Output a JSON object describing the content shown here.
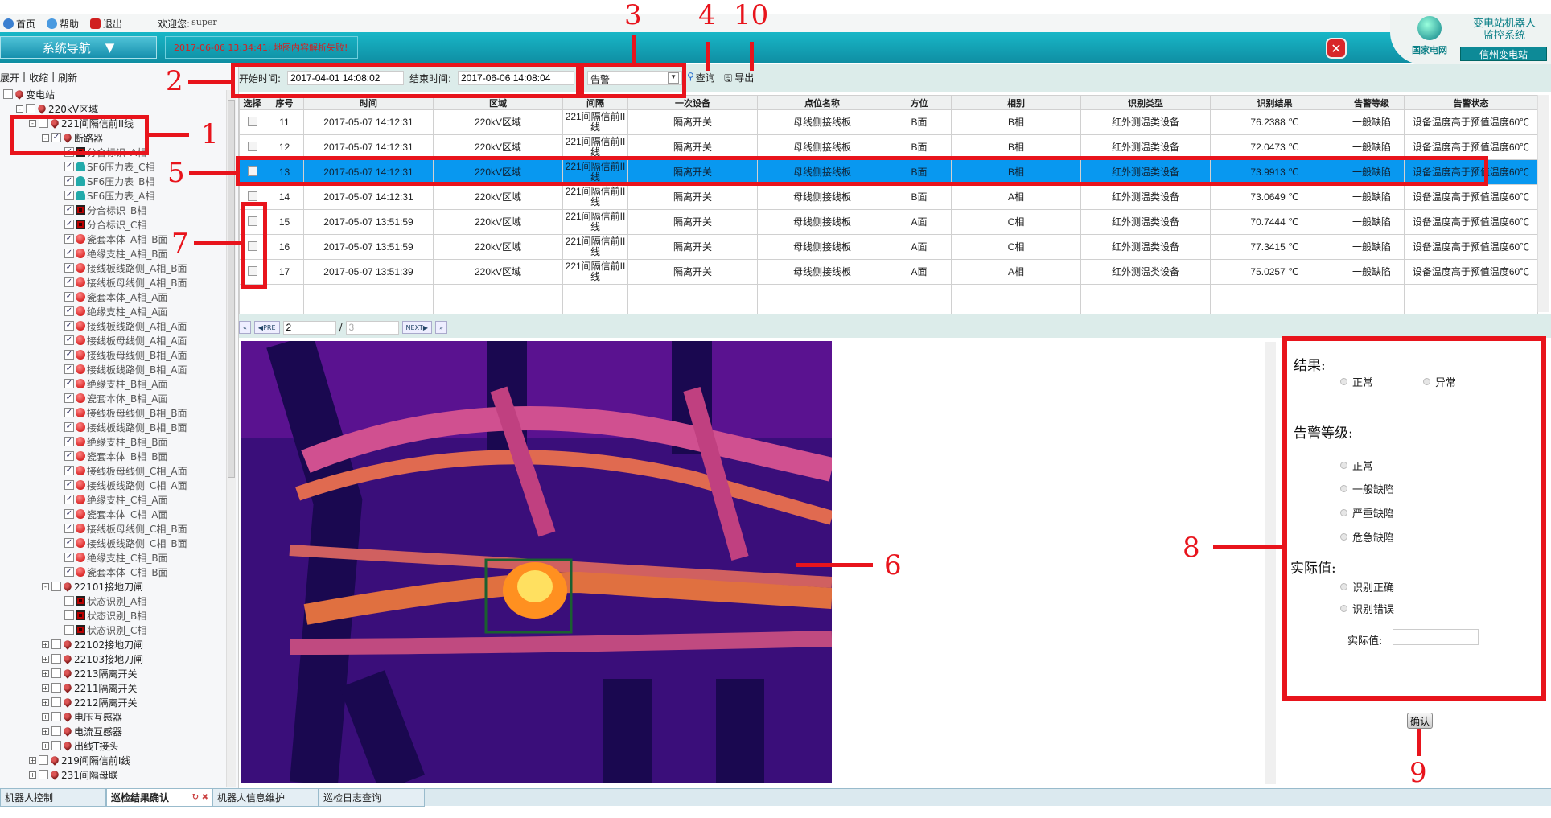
{
  "menubar": {
    "home": "首页",
    "help": "帮助",
    "logout": "退出",
    "welcome_label": "欢迎您:",
    "user": "super"
  },
  "header": {
    "nav_label": "系统导航",
    "message": "2017-06-06 13:34:41: 地图内容解析失败!",
    "org": "国家电网",
    "system_title_1": "变电站机器人",
    "system_title_2": "监控系统",
    "station": "信州变电站"
  },
  "toolbar": {
    "start_label": "开始时间:",
    "start_value": "2017-04-01 14:08:02",
    "end_label": "结束时间:",
    "end_value": "2017-06-06 14:08:04",
    "type_value": "告警",
    "query": "查询",
    "export": "导出"
  },
  "tree": {
    "actions": [
      "展开",
      "收缩",
      "刷新"
    ],
    "nodes": [
      {
        "l": 0,
        "t": "变电站",
        "c": false,
        "i": "pin"
      },
      {
        "l": 1,
        "t": "220kV区域",
        "c": false,
        "i": "pin",
        "e": "-"
      },
      {
        "l": 2,
        "t": "221间隔信前II线",
        "c": false,
        "i": "pin",
        "e": "-"
      },
      {
        "l": 3,
        "t": "断路器",
        "c": true,
        "i": "pin",
        "e": "-"
      },
      {
        "l": 4,
        "t": "分合标识_A相",
        "c": true,
        "i": "sw"
      },
      {
        "l": 4,
        "t": "SF6压力表_C相",
        "c": true,
        "i": "gauge"
      },
      {
        "l": 4,
        "t": "SF6压力表_B相",
        "c": true,
        "i": "gauge"
      },
      {
        "l": 4,
        "t": "SF6压力表_A相",
        "c": true,
        "i": "gauge"
      },
      {
        "l": 4,
        "t": "分合标识_B相",
        "c": true,
        "i": "sw"
      },
      {
        "l": 4,
        "t": "分合标识_C相",
        "c": true,
        "i": "sw"
      },
      {
        "l": 4,
        "t": "瓷套本体_A相_B面",
        "c": true,
        "i": "dome"
      },
      {
        "l": 4,
        "t": "绝缘支柱_A相_B面",
        "c": true,
        "i": "dome"
      },
      {
        "l": 4,
        "t": "接线板线路侧_A相_B面",
        "c": true,
        "i": "dome"
      },
      {
        "l": 4,
        "t": "接线板母线侧_A相_B面",
        "c": true,
        "i": "dome"
      },
      {
        "l": 4,
        "t": "瓷套本体_A相_A面",
        "c": true,
        "i": "dome"
      },
      {
        "l": 4,
        "t": "绝缘支柱_A相_A面",
        "c": true,
        "i": "dome"
      },
      {
        "l": 4,
        "t": "接线板线路侧_A相_A面",
        "c": true,
        "i": "dome"
      },
      {
        "l": 4,
        "t": "接线板母线侧_A相_A面",
        "c": true,
        "i": "dome"
      },
      {
        "l": 4,
        "t": "接线板母线侧_B相_A面",
        "c": true,
        "i": "dome"
      },
      {
        "l": 4,
        "t": "接线板线路侧_B相_A面",
        "c": true,
        "i": "dome"
      },
      {
        "l": 4,
        "t": "绝缘支柱_B相_A面",
        "c": true,
        "i": "dome"
      },
      {
        "l": 4,
        "t": "瓷套本体_B相_A面",
        "c": true,
        "i": "dome"
      },
      {
        "l": 4,
        "t": "接线板母线侧_B相_B面",
        "c": true,
        "i": "dome"
      },
      {
        "l": 4,
        "t": "接线板线路侧_B相_B面",
        "c": true,
        "i": "dome"
      },
      {
        "l": 4,
        "t": "绝缘支柱_B相_B面",
        "c": true,
        "i": "dome"
      },
      {
        "l": 4,
        "t": "瓷套本体_B相_B面",
        "c": true,
        "i": "dome"
      },
      {
        "l": 4,
        "t": "接线板母线侧_C相_A面",
        "c": true,
        "i": "dome"
      },
      {
        "l": 4,
        "t": "接线板线路侧_C相_A面",
        "c": true,
        "i": "dome"
      },
      {
        "l": 4,
        "t": "绝缘支柱_C相_A面",
        "c": true,
        "i": "dome"
      },
      {
        "l": 4,
        "t": "瓷套本体_C相_A面",
        "c": true,
        "i": "dome"
      },
      {
        "l": 4,
        "t": "接线板母线侧_C相_B面",
        "c": true,
        "i": "dome"
      },
      {
        "l": 4,
        "t": "接线板线路侧_C相_B面",
        "c": true,
        "i": "dome"
      },
      {
        "l": 4,
        "t": "绝缘支柱_C相_B面",
        "c": true,
        "i": "dome"
      },
      {
        "l": 4,
        "t": "瓷套本体_C相_B面",
        "c": true,
        "i": "dome"
      },
      {
        "l": 3,
        "t": "22101接地刀闸",
        "c": false,
        "i": "pin",
        "e": "-"
      },
      {
        "l": 4,
        "t": "状态识别_A相",
        "c": false,
        "i": "sw"
      },
      {
        "l": 4,
        "t": "状态识别_B相",
        "c": false,
        "i": "sw"
      },
      {
        "l": 4,
        "t": "状态识别_C相",
        "c": false,
        "i": "sw"
      },
      {
        "l": 3,
        "t": "22102接地刀闸",
        "c": false,
        "i": "pin",
        "e": "+"
      },
      {
        "l": 3,
        "t": "22103接地刀闸",
        "c": false,
        "i": "pin",
        "e": "+"
      },
      {
        "l": 3,
        "t": "2213隔离开关",
        "c": false,
        "i": "pin",
        "e": "+"
      },
      {
        "l": 3,
        "t": "2211隔离开关",
        "c": false,
        "i": "pin",
        "e": "+"
      },
      {
        "l": 3,
        "t": "2212隔离开关",
        "c": false,
        "i": "pin",
        "e": "+"
      },
      {
        "l": 3,
        "t": "电压互感器",
        "c": false,
        "i": "pin",
        "e": "+"
      },
      {
        "l": 3,
        "t": "电流互感器",
        "c": false,
        "i": "pin",
        "e": "+"
      },
      {
        "l": 3,
        "t": "出线T接头",
        "c": false,
        "i": "pin",
        "e": "+"
      },
      {
        "l": 2,
        "t": "219间隔信前I线",
        "c": false,
        "i": "pin",
        "e": "+"
      },
      {
        "l": 2,
        "t": "231间隔母联",
        "c": false,
        "i": "pin",
        "e": "+"
      }
    ]
  },
  "grid": {
    "columns": [
      "选择",
      "序号",
      "时间",
      "区域",
      "间隔",
      "一次设备",
      "点位名称",
      "方位",
      "相别",
      "识别类型",
      "识别结果",
      "告警等级",
      "告警状态"
    ],
    "selected_index": 2,
    "rows": [
      [
        "11",
        "2017-05-07 14:12:31",
        "220kV区域",
        "221间隔信前II线",
        "隔离开关",
        "母线侧接线板",
        "B面",
        "B相",
        "红外测温类设备",
        "76.2388 ℃",
        "一般缺陷",
        "设备温度高于预值温度60℃"
      ],
      [
        "12",
        "2017-05-07 14:12:31",
        "220kV区域",
        "221间隔信前II线",
        "隔离开关",
        "母线侧接线板",
        "B面",
        "B相",
        "红外测温类设备",
        "72.0473 ℃",
        "一般缺陷",
        "设备温度高于预值温度60℃"
      ],
      [
        "13",
        "2017-05-07 14:12:31",
        "220kV区域",
        "221间隔信前II线",
        "隔离开关",
        "母线侧接线板",
        "B面",
        "B相",
        "红外测温类设备",
        "73.9913 ℃",
        "一般缺陷",
        "设备温度高于预值温度60℃"
      ],
      [
        "14",
        "2017-05-07 14:12:31",
        "220kV区域",
        "221间隔信前II线",
        "隔离开关",
        "母线侧接线板",
        "B面",
        "A相",
        "红外测温类设备",
        "73.0649 ℃",
        "一般缺陷",
        "设备温度高于预值温度60℃"
      ],
      [
        "15",
        "2017-05-07 13:51:59",
        "220kV区域",
        "221间隔信前II线",
        "隔离开关",
        "母线侧接线板",
        "A面",
        "C相",
        "红外测温类设备",
        "70.7444 ℃",
        "一般缺陷",
        "设备温度高于预值温度60℃"
      ],
      [
        "16",
        "2017-05-07 13:51:59",
        "220kV区域",
        "221间隔信前II线",
        "隔离开关",
        "母线侧接线板",
        "A面",
        "C相",
        "红外测温类设备",
        "77.3415 ℃",
        "一般缺陷",
        "设备温度高于预值温度60℃"
      ],
      [
        "17",
        "2017-05-07 13:51:39",
        "220kV区域",
        "221间隔信前II线",
        "隔离开关",
        "母线侧接线板",
        "A面",
        "A相",
        "红外测温类设备",
        "75.0257 ℃",
        "一般缺陷",
        "设备温度高于预值温度60℃"
      ]
    ]
  },
  "pager": {
    "pre": "PRE",
    "next": "NEXT",
    "page": "2",
    "total": "3",
    "sep": "/"
  },
  "form": {
    "result_label": "结果:",
    "result_options": [
      "正常",
      "异常"
    ],
    "level_label": "告警等级:",
    "level_options": [
      "正常",
      "一般缺陷",
      "严重缺陷",
      "危急缺陷"
    ],
    "actual_label": "实际值:",
    "actual_options": [
      "识别正确",
      "识别错误"
    ],
    "actual_value_label": "实际值:",
    "actual_value": "",
    "confirm": "确认"
  },
  "tabs": [
    {
      "label": "机器人控制"
    },
    {
      "label": "巡检结果确认",
      "active": true
    },
    {
      "label": "机器人信息维护"
    },
    {
      "label": "巡检日志查询"
    }
  ],
  "annotations": [
    "1",
    "2",
    "3",
    "4",
    "5",
    "6",
    "7",
    "8",
    "9",
    "10"
  ],
  "colors": {
    "accent": "#0898f0",
    "banner": "#14a6b9",
    "annotation": "#e8141c"
  }
}
